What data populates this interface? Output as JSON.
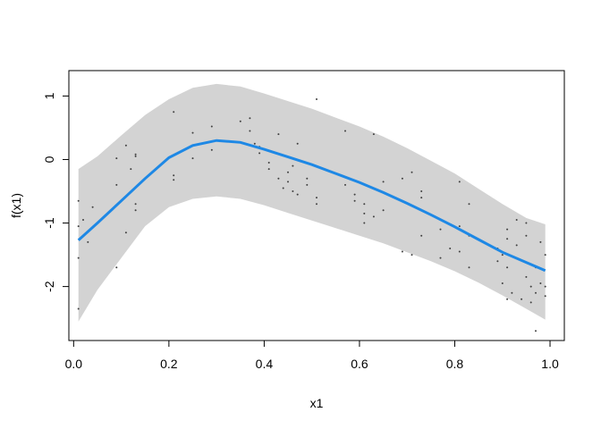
{
  "chart_data": {
    "type": "line",
    "title": "",
    "xlabel": "x1",
    "ylabel": "f(x1)",
    "xlim": [
      -0.01,
      1.03
    ],
    "ylim": [
      -2.85,
      1.4
    ],
    "x_ticks": [
      0.0,
      0.2,
      0.4,
      0.6,
      0.8,
      1.0
    ],
    "x_tick_labels": [
      "0.0",
      "0.2",
      "0.4",
      "0.6",
      "0.8",
      "1.0"
    ],
    "y_ticks": [
      -2,
      -1,
      0,
      1
    ],
    "y_tick_labels": [
      "-2",
      "-1",
      "0",
      "1"
    ],
    "grid": false,
    "colors": {
      "fit": "#1e88e5",
      "band": "#d3d3d3",
      "points": "#404040"
    },
    "fit": {
      "x": [
        0.01,
        0.05,
        0.1,
        0.15,
        0.2,
        0.25,
        0.3,
        0.35,
        0.4,
        0.45,
        0.5,
        0.55,
        0.6,
        0.65,
        0.7,
        0.75,
        0.8,
        0.85,
        0.9,
        0.95,
        0.99
      ],
      "y": [
        -1.27,
        -1.0,
        -0.65,
        -0.3,
        0.03,
        0.22,
        0.3,
        0.27,
        0.16,
        0.04,
        -0.08,
        -0.22,
        -0.36,
        -0.52,
        -0.69,
        -0.87,
        -1.06,
        -1.26,
        -1.46,
        -1.62,
        -1.75
      ],
      "lower": [
        -2.55,
        -2.05,
        -1.55,
        -1.05,
        -0.75,
        -0.62,
        -0.58,
        -0.62,
        -0.72,
        -0.84,
        -0.96,
        -1.08,
        -1.2,
        -1.32,
        -1.46,
        -1.6,
        -1.76,
        -1.94,
        -2.14,
        -2.35,
        -2.52
      ],
      "upper": [
        -0.15,
        0.05,
        0.38,
        0.7,
        0.95,
        1.13,
        1.19,
        1.15,
        1.04,
        0.92,
        0.8,
        0.66,
        0.52,
        0.36,
        0.18,
        -0.02,
        -0.22,
        -0.46,
        -0.7,
        -0.92,
        -1.02
      ]
    },
    "points": {
      "x": [
        0.01,
        0.01,
        0.01,
        0.01,
        0.02,
        0.03,
        0.04,
        0.09,
        0.09,
        0.09,
        0.11,
        0.11,
        0.12,
        0.13,
        0.13,
        0.13,
        0.13,
        0.21,
        0.21,
        0.21,
        0.25,
        0.25,
        0.29,
        0.29,
        0.35,
        0.37,
        0.37,
        0.38,
        0.39,
        0.39,
        0.41,
        0.41,
        0.43,
        0.43,
        0.44,
        0.45,
        0.45,
        0.46,
        0.46,
        0.47,
        0.47,
        0.49,
        0.49,
        0.51,
        0.51,
        0.51,
        0.57,
        0.57,
        0.59,
        0.59,
        0.61,
        0.61,
        0.61,
        0.63,
        0.63,
        0.65,
        0.65,
        0.69,
        0.69,
        0.71,
        0.71,
        0.73,
        0.73,
        0.73,
        0.77,
        0.77,
        0.79,
        0.81,
        0.81,
        0.81,
        0.83,
        0.83,
        0.83,
        0.89,
        0.89,
        0.9,
        0.9,
        0.91,
        0.91,
        0.91,
        0.91,
        0.92,
        0.93,
        0.93,
        0.94,
        0.95,
        0.95,
        0.95,
        0.96,
        0.96,
        0.97,
        0.97,
        0.97,
        0.98,
        0.98,
        0.99,
        0.99,
        0.99
      ],
      "y": [
        -0.65,
        -1.05,
        -1.55,
        -2.35,
        -0.95,
        -1.3,
        -0.75,
        0.02,
        -0.4,
        -1.7,
        0.22,
        -1.15,
        -0.15,
        0.08,
        -0.7,
        -0.8,
        0.05,
        0.75,
        -0.25,
        -0.32,
        0.42,
        0.02,
        0.52,
        0.15,
        0.6,
        0.65,
        0.45,
        0.25,
        0.2,
        0.1,
        -0.05,
        -0.15,
        -0.3,
        0.4,
        -0.45,
        -0.2,
        -0.35,
        -0.5,
        -0.1,
        0.25,
        -0.55,
        -0.3,
        -0.4,
        0.95,
        -0.6,
        -0.7,
        0.45,
        -0.4,
        -0.55,
        -0.65,
        -0.7,
        -0.85,
        -1.0,
        0.4,
        -0.9,
        -0.35,
        -0.8,
        -0.3,
        -1.45,
        -0.2,
        -1.5,
        -0.6,
        -0.5,
        -1.2,
        -1.1,
        -1.55,
        -1.4,
        -0.35,
        -1.05,
        -1.45,
        -1.2,
        -0.7,
        -1.7,
        -1.4,
        -1.6,
        -1.5,
        -1.95,
        -1.1,
        -1.25,
        -1.7,
        -2.2,
        -2.1,
        -0.95,
        -1.35,
        -2.2,
        -1.85,
        -1.0,
        -1.2,
        -2.0,
        -2.25,
        -2.7,
        -1.7,
        -2.1,
        -1.3,
        -1.95,
        -1.5,
        -2.0,
        -2.15
      ]
    }
  }
}
